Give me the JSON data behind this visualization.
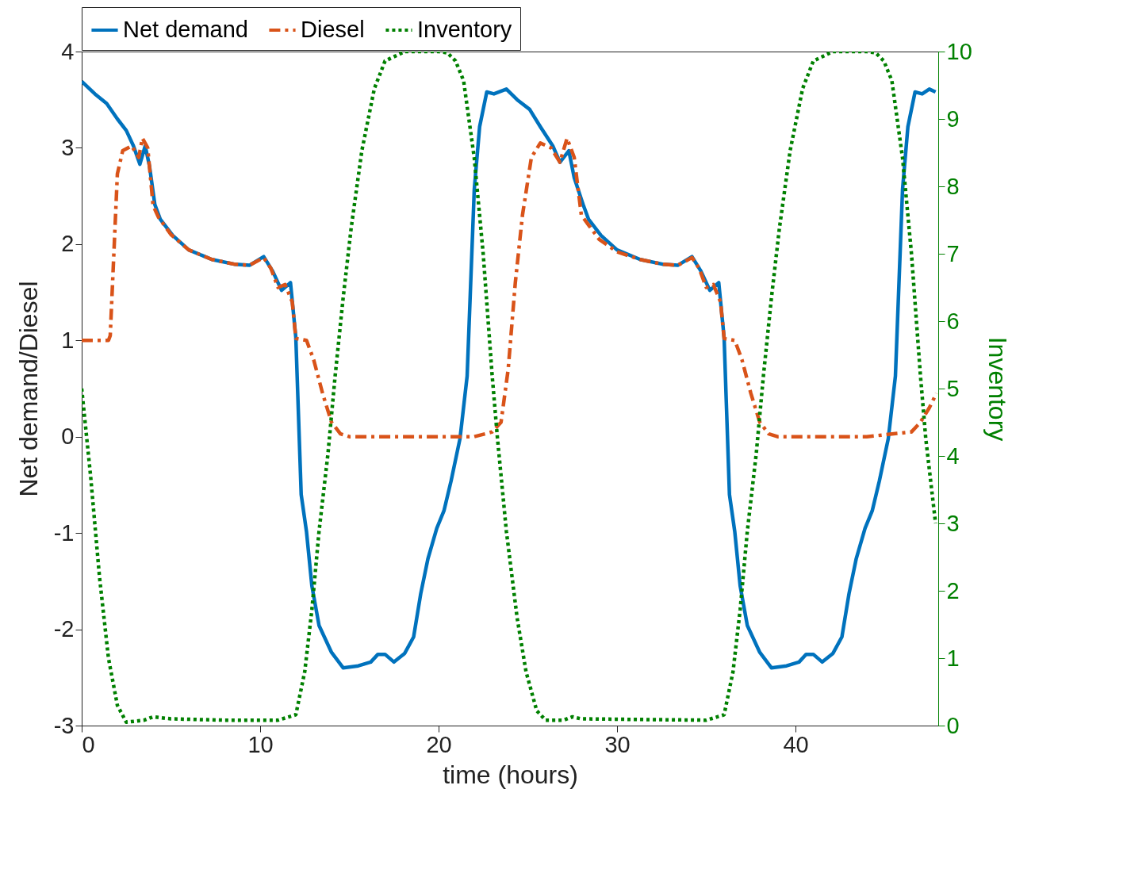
{
  "chart_data": {
    "type": "line",
    "xlabel": "time (hours)",
    "ylabel": "Net demand/Diesel",
    "y2label": "Inventory",
    "xlim": [
      0,
      48
    ],
    "xticks": [
      0,
      10,
      20,
      30,
      40
    ],
    "ylim": [
      -3,
      4
    ],
    "yticks": [
      -3,
      -2,
      -1,
      0,
      1,
      2,
      3,
      4
    ],
    "y2lim": [
      0,
      10
    ],
    "y2ticks": [
      0,
      1,
      2,
      3,
      4,
      5,
      6,
      7,
      8,
      9,
      10
    ],
    "grid": false,
    "legend": "top",
    "marker": "none",
    "series": [
      {
        "name": "Net demand",
        "color": "#0072bd",
        "line_style": "solid",
        "x": [
          0,
          0.74,
          1.4,
          2.0,
          2.5,
          2.9,
          3.26,
          3.56,
          3.8,
          4.1,
          4.4,
          5.1,
          6.0,
          7.3,
          8.6,
          9.4,
          10.2,
          10.7,
          11.2,
          11.7,
          12.0,
          12.3,
          12.6,
          12.9,
          13.3,
          14.0,
          14.65,
          15.5,
          16.2,
          16.6,
          17.0,
          17.5,
          18.1,
          18.6,
          19.0,
          19.4,
          19.9,
          20.3,
          20.7,
          21.2,
          21.6,
          22.0,
          22.3,
          22.7,
          23.1,
          23.8,
          24.4,
          25.1,
          25.7,
          26.4,
          26.8,
          27.3,
          27.6,
          28.1,
          28.4,
          29.1,
          30.0,
          31.3,
          32.6,
          33.4,
          34.2,
          34.7,
          35.2,
          35.7,
          36.0,
          36.3,
          36.6,
          36.9,
          37.3,
          38.0,
          38.65,
          39.5,
          40.2,
          40.6,
          41.0,
          41.5,
          42.1,
          42.6,
          43.0,
          43.4,
          43.9,
          44.3,
          44.7,
          45.2,
          45.6,
          46.0,
          46.3,
          46.7,
          47.1,
          47.5,
          47.85
        ],
        "values": [
          3.69,
          3.56,
          3.46,
          3.3,
          3.18,
          3.02,
          2.83,
          3.02,
          2.81,
          2.41,
          2.26,
          2.09,
          1.94,
          1.84,
          1.79,
          1.78,
          1.87,
          1.72,
          1.52,
          1.6,
          1.03,
          -0.6,
          -0.99,
          -1.55,
          -1.96,
          -2.24,
          -2.4,
          -2.38,
          -2.34,
          -2.26,
          -2.26,
          -2.34,
          -2.25,
          -2.08,
          -1.63,
          -1.27,
          -0.95,
          -0.77,
          -0.46,
          -0.02,
          0.63,
          2.57,
          3.22,
          3.58,
          3.56,
          3.61,
          3.5,
          3.4,
          3.22,
          3.02,
          2.85,
          2.97,
          2.69,
          2.41,
          2.26,
          2.09,
          1.94,
          1.84,
          1.79,
          1.78,
          1.87,
          1.72,
          1.52,
          1.6,
          1.03,
          -0.6,
          -0.99,
          -1.55,
          -1.96,
          -2.24,
          -2.4,
          -2.38,
          -2.34,
          -2.26,
          -2.26,
          -2.34,
          -2.25,
          -2.08,
          -1.63,
          -1.27,
          -0.95,
          -0.77,
          -0.46,
          -0.02,
          0.63,
          2.57,
          3.22,
          3.58,
          3.56,
          3.61,
          3.58
        ]
      },
      {
        "name": "Diesel",
        "color": "#d95319",
        "line_style": "dashed",
        "x": [
          0,
          1.5,
          1.6,
          2.0,
          2.3,
          2.8,
          3.2,
          3.4,
          3.7,
          4.0,
          4.3,
          5.0,
          6.0,
          7.3,
          8.6,
          9.4,
          10.2,
          10.6,
          11.0,
          11.4,
          11.8,
          12.0,
          12.6,
          13.0,
          13.5,
          14.0,
          14.5,
          15.0,
          20.0,
          22.0,
          23.0,
          23.5,
          23.9,
          24.3,
          24.7,
          25.2,
          25.7,
          26.3,
          26.8,
          27.2,
          27.6,
          28.0,
          28.4,
          29.0,
          30.0,
          31.3,
          32.6,
          33.4,
          34.2,
          34.6,
          35.0,
          35.4,
          35.8,
          36.0,
          36.6,
          37.0,
          37.5,
          38.0,
          38.5,
          39.0,
          44.0,
          46.5,
          47.0,
          47.5,
          47.9
        ],
        "values": [
          1.0,
          1.0,
          1.05,
          2.73,
          2.97,
          3.02,
          2.9,
          3.1,
          3.0,
          2.4,
          2.28,
          2.1,
          1.94,
          1.84,
          1.79,
          1.78,
          1.86,
          1.75,
          1.55,
          1.58,
          1.4,
          1.02,
          1.0,
          0.8,
          0.45,
          0.15,
          0.03,
          0.0,
          0.0,
          0.0,
          0.05,
          0.15,
          0.7,
          1.6,
          2.3,
          2.9,
          3.05,
          3.0,
          2.85,
          3.1,
          2.9,
          2.3,
          2.2,
          2.05,
          1.92,
          1.84,
          1.79,
          1.78,
          1.86,
          1.75,
          1.55,
          1.58,
          1.4,
          1.02,
          1.0,
          0.8,
          0.45,
          0.15,
          0.03,
          0.0,
          0.0,
          0.05,
          0.15,
          0.3,
          0.45
        ]
      },
      {
        "name": "Inventory",
        "color": "#008000",
        "line_style": "dotted",
        "axis": "y2",
        "x": [
          0,
          0.5,
          1.0,
          1.5,
          2.0,
          2.5,
          3.5,
          4.0,
          5.0,
          8.0,
          11.0,
          12.0,
          12.5,
          12.9,
          13.3,
          13.8,
          14.2,
          14.65,
          15.1,
          15.7,
          16.4,
          17.0,
          18.1,
          20.0,
          20.5,
          20.95,
          21.4,
          22.0,
          22.5,
          23.0,
          23.3,
          23.8,
          24.4,
          24.9,
          25.5,
          26.0,
          27.0,
          27.5,
          28.0,
          35.0,
          36.0,
          36.5,
          36.9,
          37.3,
          37.8,
          38.2,
          38.65,
          39.1,
          39.7,
          40.4,
          41.0,
          42.1,
          44.0,
          44.5,
          44.95,
          45.4,
          46.0,
          46.5,
          47.0,
          47.3,
          47.85
        ],
        "values": [
          5.0,
          3.7,
          2.2,
          1.0,
          0.3,
          0.05,
          0.08,
          0.13,
          0.1,
          0.08,
          0.08,
          0.16,
          0.8,
          1.72,
          2.88,
          4.03,
          5.18,
          6.34,
          7.38,
          8.53,
          9.45,
          9.86,
          10,
          10,
          9.98,
          9.86,
          9.57,
          8.42,
          7.0,
          5.2,
          4.26,
          2.88,
          1.6,
          0.8,
          0.22,
          0.08,
          0.08,
          0.13,
          0.1,
          0.08,
          0.16,
          0.8,
          1.72,
          2.88,
          4.03,
          5.18,
          6.34,
          7.38,
          8.53,
          9.45,
          9.86,
          10,
          10,
          9.98,
          9.86,
          9.57,
          8.42,
          7.0,
          5.2,
          4.26,
          3.0
        ]
      }
    ]
  }
}
